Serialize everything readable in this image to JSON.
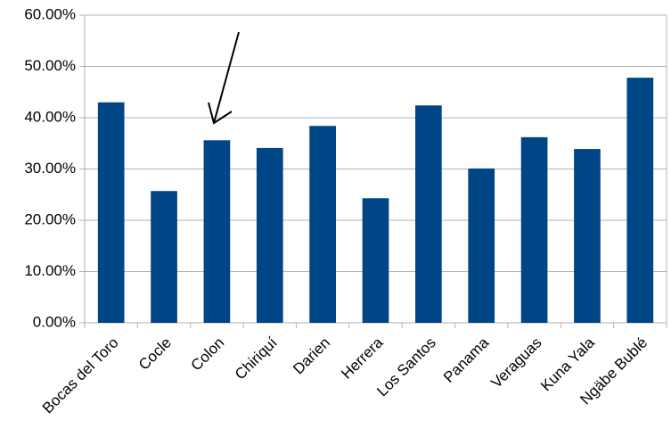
{
  "chart_data": {
    "type": "bar",
    "categories": [
      "Bocas del Toro",
      "Cocle",
      "Colon",
      "Chiriquí",
      "Darien",
      "Herrera",
      "Los Santos",
      "Panama",
      "Veraguas",
      "Kuna Yala",
      "Ngäbe Bublé"
    ],
    "values": [
      43.0,
      25.7,
      35.6,
      34.1,
      38.4,
      24.3,
      42.4,
      30.1,
      36.2,
      33.9,
      47.8
    ],
    "color": "#004586",
    "ylim": [
      0,
      60
    ],
    "yticks": [
      {
        "value": 0,
        "label": "0.00%"
      },
      {
        "value": 10,
        "label": "10.00%"
      },
      {
        "value": 20,
        "label": "20.00%"
      },
      {
        "value": 30,
        "label": "30.00%"
      },
      {
        "value": 40,
        "label": "40.00%"
      },
      {
        "value": 50,
        "label": "50.00%"
      },
      {
        "value": 60,
        "label": "60.00%"
      }
    ],
    "grid": true
  }
}
